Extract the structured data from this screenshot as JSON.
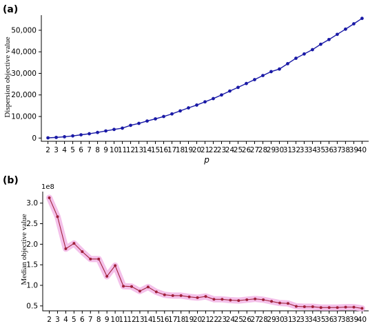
{
  "chart_data": [
    {
      "type": "line",
      "panel_label": "(a)",
      "xlabel": "p",
      "ylabel": "Dispersion objective value",
      "x": [
        2,
        3,
        4,
        5,
        6,
        7,
        8,
        9,
        10,
        11,
        12,
        13,
        14,
        15,
        16,
        17,
        18,
        19,
        20,
        21,
        22,
        23,
        24,
        25,
        26,
        27,
        28,
        29,
        30,
        31,
        32,
        33,
        34,
        35,
        36,
        37,
        38,
        39,
        40
      ],
      "series": [
        {
          "color": "#1a1aa6",
          "values": [
            100,
            300,
            600,
            1000,
            1500,
            2000,
            2600,
            3300,
            4000,
            4600,
            5900,
            6800,
            7900,
            8900,
            10000,
            11200,
            12600,
            14000,
            15300,
            16800,
            18300,
            20000,
            21800,
            23500,
            25300,
            27100,
            29000,
            30800,
            32000,
            34500,
            37000,
            39000,
            41000,
            43500,
            45700,
            48100,
            50500,
            53000,
            55500
          ]
        }
      ],
      "ylim": [
        -1500,
        57000
      ],
      "yticks": [
        0,
        10000,
        20000,
        30000,
        40000,
        50000
      ],
      "ytick_labels": [
        "0",
        "10,000",
        "20,000",
        "30,000",
        "40,000",
        "50,000"
      ],
      "grid": false
    },
    {
      "type": "line",
      "panel_label": "(b)",
      "xlabel": "",
      "ylabel": "Median objective value",
      "y_multiplier_label": "1e8",
      "x": [
        2,
        3,
        4,
        5,
        6,
        7,
        8,
        9,
        10,
        11,
        12,
        13,
        14,
        15,
        16,
        17,
        18,
        19,
        20,
        21,
        22,
        23,
        24,
        25,
        26,
        27,
        28,
        29,
        30,
        31,
        32,
        33,
        34,
        35,
        36,
        37,
        38,
        39,
        40
      ],
      "series": [
        {
          "color": "#a0203a",
          "band_color": "#f2b6e6",
          "values": [
            3.13,
            2.67,
            1.89,
            2.02,
            1.82,
            1.64,
            1.64,
            1.22,
            1.48,
            0.98,
            0.97,
            0.86,
            0.96,
            0.84,
            0.77,
            0.75,
            0.75,
            0.72,
            0.7,
            0.73,
            0.66,
            0.66,
            0.64,
            0.63,
            0.65,
            0.67,
            0.65,
            0.61,
            0.57,
            0.56,
            0.49,
            0.48,
            0.48,
            0.46,
            0.46,
            0.46,
            0.47,
            0.47,
            0.44
          ]
        }
      ],
      "ylim": [
        0.38,
        3.28
      ],
      "yticks": [
        0.5,
        1.0,
        1.5,
        2.0,
        2.5,
        3.0
      ],
      "ytick_labels": [
        "0.5",
        "1.0",
        "1.5",
        "2.0",
        "2.5",
        "3.0"
      ],
      "grid": false
    }
  ]
}
